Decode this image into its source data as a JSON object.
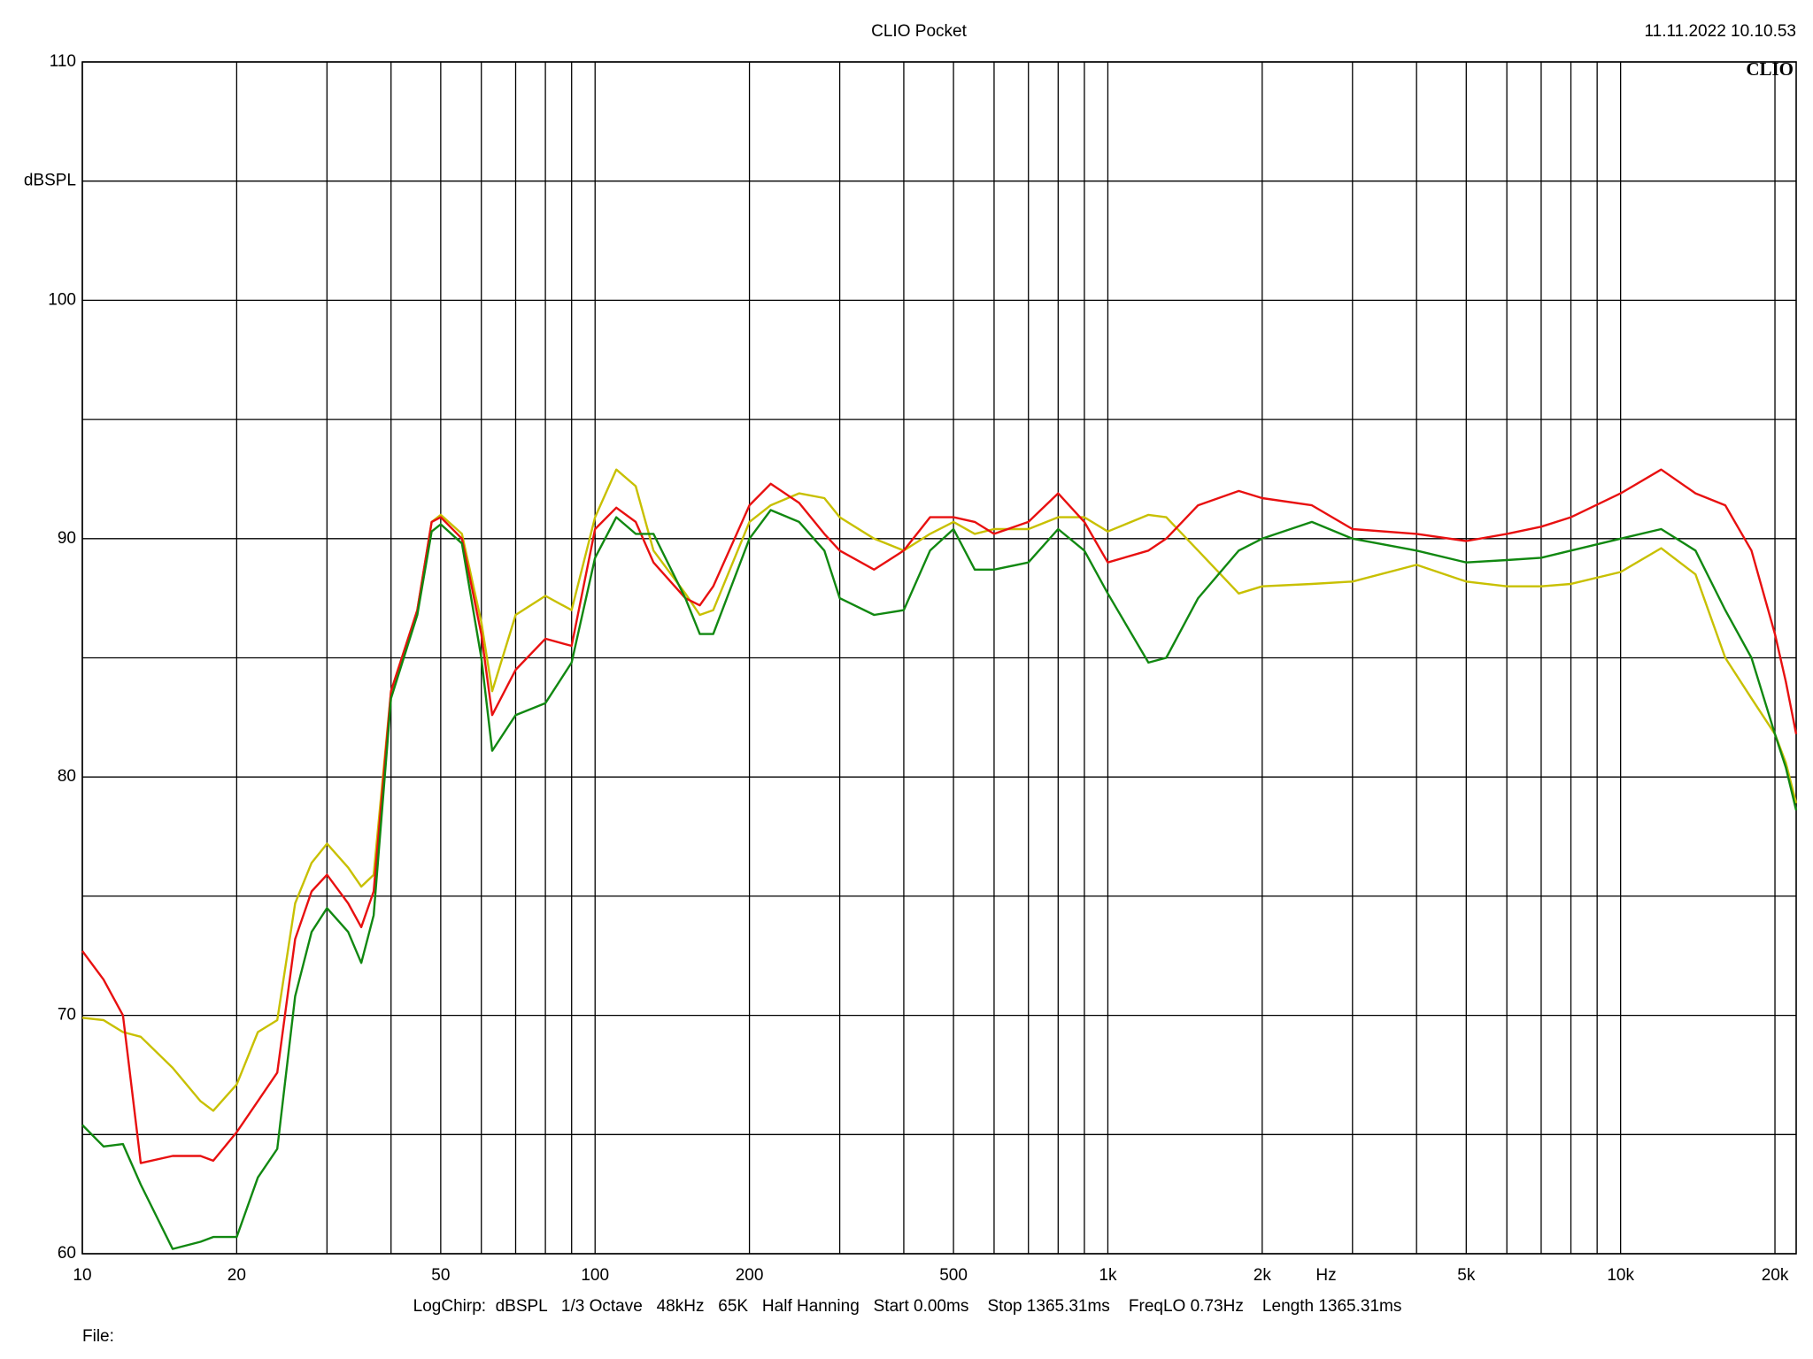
{
  "chart_data": {
    "type": "line",
    "title": "CLIO Pocket",
    "timestamp": "11.11.2022 10.10.53",
    "logo": "CLIO",
    "y_label": "dBSPL",
    "x_label": "Hz",
    "footer": "LogChirp:  dBSPL   1/3 Octave   48kHz   65K   Half Hanning   Start 0.00ms    Stop 1365.31ms    FreqLO 0.73Hz    Length 1365.31ms",
    "file_label": "File:",
    "x_log": true,
    "grid": true,
    "xlim": [
      10,
      22000
    ],
    "ylim": [
      60,
      110
    ],
    "xticks": [
      10,
      20,
      50,
      100,
      200,
      500,
      {
        "value": 1000,
        "label": "1k"
      },
      {
        "value": 2000,
        "label": "2k"
      },
      {
        "value": 5000,
        "label": "5k"
      },
      {
        "value": 10000,
        "label": "10k"
      },
      {
        "value": 20000,
        "label": "20k"
      }
    ],
    "x_minor_ticks": [
      30,
      40,
      60,
      70,
      80,
      90,
      300,
      400,
      600,
      700,
      800,
      900,
      3000,
      4000,
      6000,
      7000,
      8000,
      9000
    ],
    "yticks": [
      60,
      70,
      80,
      90,
      100,
      110
    ],
    "y_minor_ticks": [
      65,
      75,
      85,
      95,
      105
    ],
    "x": [
      10,
      11,
      12,
      13,
      15,
      17,
      18,
      20,
      22,
      24,
      26,
      28,
      30,
      33,
      35,
      37,
      40,
      45,
      48,
      50,
      55,
      60,
      63,
      70,
      80,
      90,
      100,
      110,
      120,
      130,
      150,
      160,
      170,
      200,
      220,
      250,
      280,
      300,
      350,
      400,
      450,
      500,
      550,
      600,
      700,
      800,
      900,
      1000,
      1200,
      1300,
      1500,
      1800,
      2000,
      2500,
      3000,
      4000,
      5000,
      6000,
      7000,
      8000,
      10000,
      12000,
      14000,
      16000,
      18000,
      20000,
      21000,
      22000
    ],
    "series": [
      {
        "color": "#c8c000",
        "values": [
          69.9,
          69.8,
          69.3,
          69.1,
          67.8,
          66.4,
          66,
          67.1,
          69.3,
          69.8,
          74.7,
          76.4,
          77.2,
          76.2,
          75.4,
          75.9,
          83.6,
          87,
          90.7,
          91,
          90.2,
          86.5,
          83.6,
          86.8,
          87.6,
          87,
          90.9,
          92.9,
          92.2,
          89.5,
          87.7,
          86.8,
          87,
          90.7,
          91.4,
          91.9,
          91.7,
          90.9,
          90,
          89.5,
          90.2,
          90.7,
          90.2,
          90.4,
          90.4,
          90.9,
          90.9,
          90.3,
          91,
          90.9,
          89.5,
          87.7,
          88,
          88.1,
          88.2,
          88.9,
          88.2,
          88,
          88,
          88.1,
          88.6,
          89.6,
          88.5,
          85,
          83.3,
          81.8,
          80.6,
          78.9
        ]
      },
      {
        "color": "#e81010",
        "values": [
          72.7,
          71.5,
          70,
          63.8,
          64.1,
          64.1,
          63.9,
          65.1,
          66.4,
          67.6,
          73.2,
          75.2,
          75.9,
          74.7,
          73.7,
          75.2,
          83.6,
          87,
          90.7,
          90.9,
          90,
          86,
          82.6,
          84.5,
          85.8,
          85.5,
          90.4,
          91.3,
          90.7,
          89,
          87.5,
          87.2,
          88,
          91.4,
          92.3,
          91.5,
          90.2,
          89.5,
          88.7,
          89.5,
          90.9,
          90.9,
          90.7,
          90.2,
          90.7,
          91.9,
          90.7,
          89,
          89.5,
          90,
          91.4,
          92,
          91.7,
          91.4,
          90.4,
          90.2,
          89.9,
          90.2,
          90.5,
          90.9,
          91.9,
          92.9,
          91.9,
          91.4,
          89.5,
          86,
          84,
          81.8
        ]
      },
      {
        "color": "#118811",
        "values": [
          65.4,
          64.5,
          64.6,
          62.9,
          60.2,
          60.5,
          60.7,
          60.7,
          63.2,
          64.4,
          70.8,
          73.5,
          74.5,
          73.5,
          72.2,
          74.2,
          83.3,
          86.8,
          90.3,
          90.6,
          89.8,
          85,
          81.1,
          82.6,
          83.1,
          84.8,
          89.2,
          90.9,
          90.2,
          90.2,
          87.5,
          86,
          86,
          90,
          91.2,
          90.7,
          89.5,
          87.5,
          86.8,
          87,
          89.5,
          90.4,
          88.7,
          88.7,
          89,
          90.4,
          89.5,
          87.7,
          84.8,
          85,
          87.5,
          89.5,
          90,
          90.7,
          90,
          89.5,
          89,
          89.1,
          89.2,
          89.5,
          90,
          90.4,
          89.5,
          87,
          85,
          81.8,
          80.4,
          78.6
        ]
      }
    ]
  }
}
